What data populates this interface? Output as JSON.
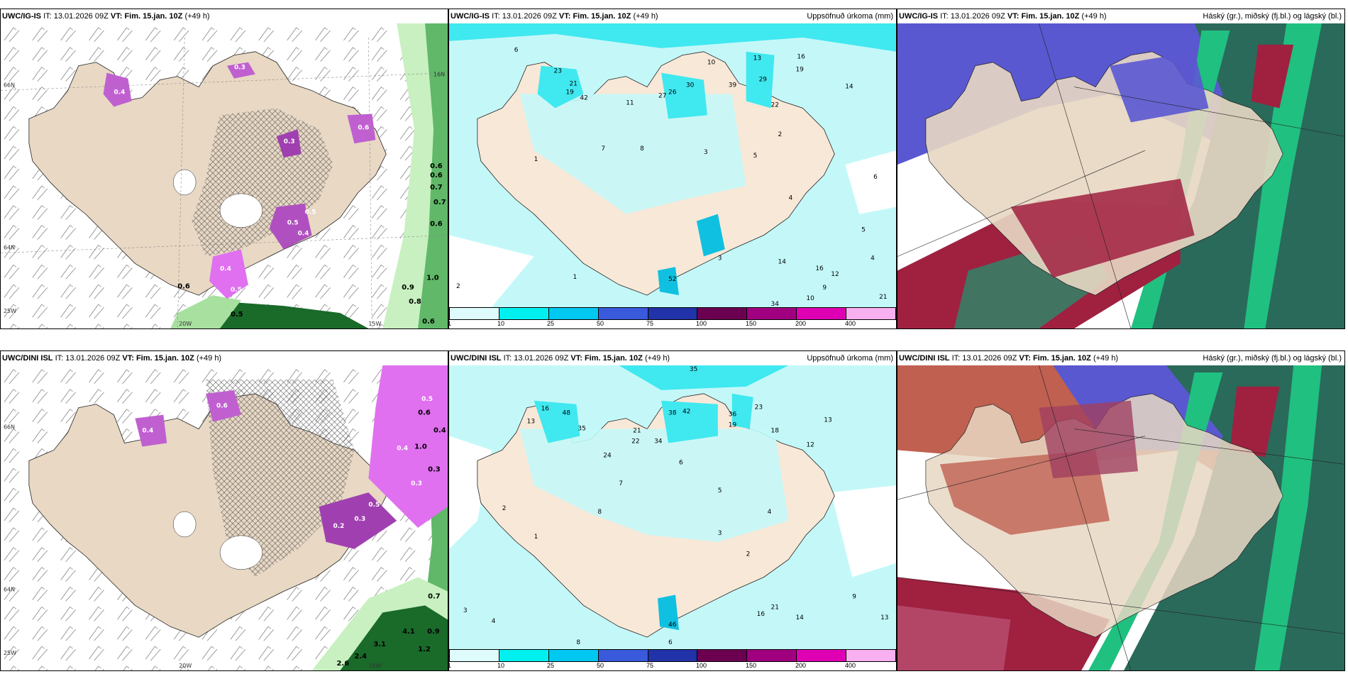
{
  "panels": [
    {
      "id": "p1",
      "model": "UWC/IG-IS",
      "it_label": "IT:",
      "it_value": "13.01.2026 09Z",
      "vt_label": "VT:",
      "vt_value": "Fim. 15.jan. 10Z",
      "lead": "(+49 h)",
      "right_title": "",
      "values": [
        "0.6",
        "0.6",
        "0.7",
        "0.7",
        "0.6",
        "1.0",
        "0.9",
        "0.8",
        "0.6",
        "0.6",
        "0.5"
      ],
      "pvalues": [
        "0.4",
        "0.3",
        "0.5",
        "0.6",
        "0.4",
        "0.3",
        "0.4",
        "0.5",
        "0.5"
      ],
      "ticks": [
        "20W",
        "15W",
        "66N",
        "64N",
        "25W",
        "16N"
      ]
    },
    {
      "id": "p2",
      "model": "UWC/IG-IS",
      "it_label": "IT:",
      "it_value": "13.01.2026 09Z",
      "vt_label": "VT:",
      "vt_value": "Fim. 15.jan. 10Z",
      "lead": "(+49 h)",
      "right_title": "Uppsöfnuð úrkoma (mm)",
      "values": [
        "6",
        "10",
        "13",
        "29",
        "19",
        "16",
        "14",
        "23",
        "21",
        "19",
        "42",
        "26",
        "27",
        "30",
        "39",
        "22",
        "11",
        "8",
        "7",
        "5",
        "4",
        "3",
        "2",
        "1",
        "52",
        "34",
        "21",
        "14",
        "16",
        "12",
        "10",
        "9",
        "6",
        "5",
        "4",
        "3",
        "2",
        "1"
      ],
      "colorbar": {
        "ticks": [
          "1",
          "10",
          "25",
          "50",
          "75",
          "100",
          "150",
          "200",
          "400"
        ],
        "colors": [
          "#dffcfc",
          "#00f0f0",
          "#00c8f0",
          "#3a5adc",
          "#2232a8",
          "#6c0050",
          "#a00080",
          "#e000b4",
          "#f8b0f0"
        ]
      }
    },
    {
      "id": "p3",
      "model": "UWC/IG-IS",
      "it_label": "IT:",
      "it_value": "13.01.2026 09Z",
      "vt_label": "VT:",
      "vt_value": "Fim. 15.jan. 10Z",
      "lead": "(+49 h)",
      "right_title": "Háský (gr.), miðský (fj.bl.) og lágský (bl.)"
    },
    {
      "id": "p4",
      "model": "UWC/DINI ISL",
      "it_label": "IT:",
      "it_value": "13.01.2026 09Z",
      "vt_label": "VT:",
      "vt_value": "Fim. 15.jan. 10Z",
      "lead": "(+49 h)",
      "right_title": "",
      "values": [
        "0.6",
        "0.4",
        "1.0",
        "0.3",
        "0.7",
        "0.9",
        "4.1",
        "2.4",
        "2.6",
        "3.1",
        "1.2"
      ],
      "pvalues": [
        "0.5",
        "0.4",
        "0.3",
        "0.2",
        "0.3",
        "0.4",
        "0.6",
        "0.5"
      ],
      "ticks": [
        "20W",
        "15W",
        "66N",
        "64N",
        "25W"
      ]
    },
    {
      "id": "p5",
      "model": "UWC/DINI ISL",
      "it_label": "IT:",
      "it_value": "13.01.2026 09Z",
      "vt_label": "VT:",
      "vt_value": "Fim. 15.jan. 10Z",
      "lead": "(+49 h)",
      "right_title": "Uppsöfnuð úrkoma (mm)",
      "values": [
        "35",
        "13",
        "16",
        "48",
        "35",
        "21",
        "22",
        "34",
        "38",
        "42",
        "36",
        "19",
        "23",
        "18",
        "12",
        "13",
        "46",
        "21",
        "14",
        "16",
        "24",
        "8",
        "7",
        "6",
        "5",
        "4",
        "3",
        "2",
        "1",
        "2",
        "3",
        "4",
        "6",
        "8",
        "9",
        "13"
      ],
      "colorbar": {
        "ticks": [
          "1",
          "10",
          "25",
          "50",
          "75",
          "100",
          "150",
          "200",
          "400"
        ],
        "colors": [
          "#dffcfc",
          "#00f0f0",
          "#00c8f0",
          "#3a5adc",
          "#2232a8",
          "#6c0050",
          "#a00080",
          "#e000b4",
          "#f8b0f0"
        ]
      }
    },
    {
      "id": "p6",
      "model": "UWC/DINI ISL",
      "it_label": "IT:",
      "it_value": "13.01.2026 09Z",
      "vt_label": "VT:",
      "vt_value": "Fim. 15.jan. 10Z",
      "lead": "(+49 h)",
      "right_title": "Háský (gr.), miðský (fj.bl.) og lágský (bl.)"
    }
  ],
  "colors": {
    "land": "#e8d8c4",
    "precip_bg": "#c4f8f8",
    "precip_mid": "#40e8f0",
    "precip_dark": "#10c0e0",
    "green_light": "#c8f0c0",
    "green_dark": "#1a6a2a",
    "purple": "#c060d0",
    "magenta": "#e070f0",
    "cloud_blue": "#5a58d0",
    "cloud_red": "#a02040",
    "cloud_teal": "#2a6a5a",
    "cloud_green": "#20c080"
  }
}
